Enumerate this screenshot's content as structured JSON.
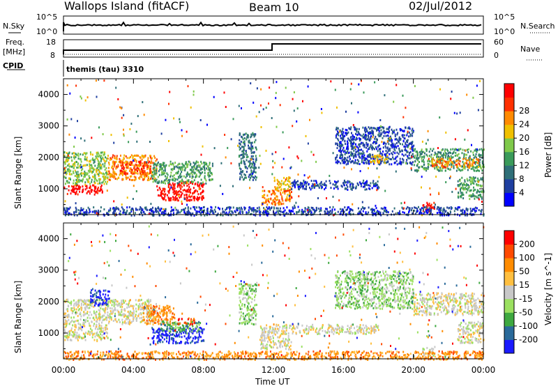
{
  "header": {
    "site": "Wallops Island (fitACF)",
    "beam": "Beam 10",
    "date": "02/Jul/2012"
  },
  "status": {
    "nsky_label": "N.Sky",
    "nsky_ticks": [
      "10^5",
      "10^0"
    ],
    "nsearch_label": "N.Search",
    "nsearch_ticks": [
      "10^5",
      "10^0"
    ],
    "freq_label": "Freq.",
    "freq_unit": "[MHz]",
    "freq_ticks": [
      "18",
      "8"
    ],
    "nave_label": "Nave",
    "nave_ticks": [
      "60",
      "0"
    ],
    "cpid_label": "CPID",
    "cpid_value": "themis (tau) 3310"
  },
  "colors": {
    "power": [
      "#0000ff",
      "#1f3fa0",
      "#2f6f78",
      "#3a9a5a",
      "#7fc94a",
      "#f0c000",
      "#ff8a00",
      "#ff3000",
      "#ff0000"
    ],
    "velocity": [
      "#ff0000",
      "#ff4a00",
      "#ff8c00",
      "#ffbf40",
      "#c8c8c8",
      "#9be060",
      "#3ea840",
      "#2a6a9a",
      "#1a1aff"
    ]
  },
  "chart_data": [
    {
      "type": "heatmap",
      "name": "power",
      "ylabel": "Slant Range [km]",
      "yticks": [
        "1000",
        "2000",
        "3000",
        "4000"
      ],
      "xticks": [
        "00:00",
        "04:00",
        "08:00",
        "12:00",
        "16:00",
        "20:00",
        "00:00"
      ],
      "xlabel": "Time UT",
      "colorbar_label": "Power [dB]",
      "colorbar_ticks": [
        "4",
        "8",
        "12",
        "16",
        "20",
        "24",
        "28"
      ],
      "x_range_hours": [
        0,
        24
      ],
      "y_range_km": [
        180,
        4500
      ],
      "regions": [
        {
          "t0": 0.0,
          "t1": 2.2,
          "r0": 850,
          "r1": 1150,
          "level": 8
        },
        {
          "t0": 0.0,
          "t1": 2.5,
          "r0": 1150,
          "r1": 2200,
          "level": 4
        },
        {
          "t0": 2.5,
          "t1": 5.3,
          "r0": 1300,
          "r1": 2100,
          "level": 6
        },
        {
          "t0": 3.2,
          "t1": 5.0,
          "r0": 1500,
          "r1": 1900,
          "level": 7
        },
        {
          "t0": 5.3,
          "t1": 8.0,
          "r0": 650,
          "r1": 1250,
          "level": 8
        },
        {
          "t0": 5.0,
          "t1": 8.5,
          "r0": 1200,
          "r1": 1900,
          "level": 3
        },
        {
          "t0": 10.0,
          "t1": 11.0,
          "r0": 1300,
          "r1": 2800,
          "level": 2
        },
        {
          "t0": 11.3,
          "t1": 13.0,
          "r0": 500,
          "r1": 1000,
          "level": 6
        },
        {
          "t0": 12.0,
          "t1": 13.0,
          "r0": 1000,
          "r1": 1400,
          "level": 5
        },
        {
          "t0": 13.0,
          "t1": 18.0,
          "r0": 1000,
          "r1": 1300,
          "level": 1
        },
        {
          "t0": 15.5,
          "t1": 20.0,
          "r0": 1800,
          "r1": 3000,
          "level": 1
        },
        {
          "t0": 17.5,
          "t1": 18.5,
          "r0": 1850,
          "r1": 2100,
          "level": 5
        },
        {
          "t0": 20.0,
          "t1": 24.0,
          "r0": 1600,
          "r1": 2300,
          "level": 3
        },
        {
          "t0": 21.0,
          "t1": 23.7,
          "r0": 1700,
          "r1": 2000,
          "level": 6
        },
        {
          "t0": 20.5,
          "t1": 21.2,
          "r0": 300,
          "r1": 600,
          "level": 8
        },
        {
          "t0": 22.5,
          "t1": 24.0,
          "r0": 700,
          "r1": 1400,
          "level": 3
        },
        {
          "t0": 0.0,
          "t1": 24.0,
          "r0": 180,
          "r1": 450,
          "level": 1
        }
      ]
    },
    {
      "type": "heatmap",
      "name": "velocity",
      "ylabel": "Slant Range [km]",
      "yticks": [
        "1000",
        "2000",
        "3000",
        "4000"
      ],
      "xticks": [
        "00:00",
        "04:00",
        "08:00",
        "12:00",
        "16:00",
        "20:00",
        "00:00"
      ],
      "xlabel": "Time UT",
      "colorbar_label": "Velocity [m s^-1]",
      "colorbar_ticks": [
        "200",
        "100",
        "50",
        "15",
        "-15",
        "-50",
        "-100",
        "-200"
      ],
      "x_range_hours": [
        0,
        24
      ],
      "y_range_km": [
        180,
        4500
      ],
      "regions": [
        {
          "t0": 0.0,
          "t1": 2.5,
          "r0": 800,
          "r1": 2100,
          "level": 4
        },
        {
          "t0": 1.5,
          "t1": 2.6,
          "r0": 1900,
          "r1": 2400,
          "level": 8
        },
        {
          "t0": 2.5,
          "t1": 5.3,
          "r0": 1300,
          "r1": 2100,
          "level": 4
        },
        {
          "t0": 4.5,
          "t1": 6.3,
          "r0": 1300,
          "r1": 1900,
          "level": 2
        },
        {
          "t0": 5.0,
          "t1": 8.0,
          "r0": 700,
          "r1": 1200,
          "level": 8
        },
        {
          "t0": 5.5,
          "t1": 7.8,
          "r0": 1050,
          "r1": 1400,
          "level": 6
        },
        {
          "t0": 6.5,
          "t1": 7.5,
          "r0": 1300,
          "r1": 1500,
          "level": 1
        },
        {
          "t0": 10.0,
          "t1": 11.0,
          "r0": 1300,
          "r1": 2600,
          "level": 5
        },
        {
          "t0": 11.2,
          "t1": 13.0,
          "r0": 500,
          "r1": 1300,
          "level": 4
        },
        {
          "t0": 13.0,
          "t1": 18.0,
          "r0": 1000,
          "r1": 1300,
          "level": 4
        },
        {
          "t0": 15.5,
          "t1": 20.0,
          "r0": 1800,
          "r1": 3000,
          "level": 5
        },
        {
          "t0": 20.0,
          "t1": 24.0,
          "r0": 1600,
          "r1": 2300,
          "level": 4
        },
        {
          "t0": 20.5,
          "t1": 21.2,
          "r0": 300,
          "r1": 600,
          "level": 4
        },
        {
          "t0": 22.5,
          "t1": 24.0,
          "r0": 700,
          "r1": 1400,
          "level": 4
        },
        {
          "t0": 0.0,
          "t1": 24.0,
          "r0": 180,
          "r1": 450,
          "level": 2
        }
      ]
    }
  ]
}
